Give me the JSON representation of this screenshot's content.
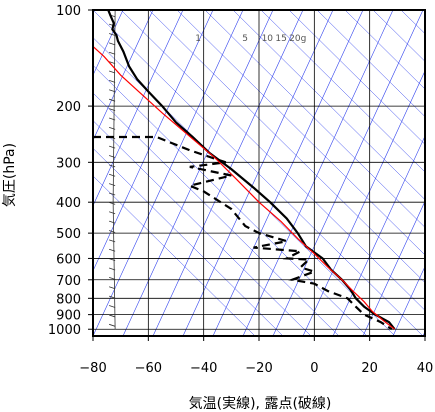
{
  "chart_data": {
    "type": "line",
    "xlabel": "気温(実線), 露点(破線)",
    "ylabel": "気圧(hPa)",
    "xlim": [
      -80,
      40
    ],
    "ylim": [
      1050,
      100
    ],
    "yscale": "log",
    "x_ticks": [
      -80,
      -60,
      -40,
      -20,
      0,
      20,
      40
    ],
    "x_tick_labels": [
      "−80",
      "−60",
      "−40",
      "−20",
      "0",
      "20",
      "40"
    ],
    "y_ticks": [
      100,
      200,
      300,
      400,
      500,
      600,
      700,
      800,
      900,
      1000
    ],
    "y_tick_labels": [
      "100",
      "200",
      "300",
      "400",
      "500",
      "600",
      "700",
      "800",
      "900",
      "1000"
    ],
    "mixing_ratio_labels": [
      {
        "text": "1",
        "x": -42
      },
      {
        "text": "5",
        "x": -25
      },
      {
        "text": "10",
        "x": -17
      },
      {
        "text": "15",
        "x": -12
      },
      {
        "text": "20g",
        "x": -6
      }
    ],
    "series": [
      {
        "style": "solid",
        "color": "#000000",
        "points": [
          [
            -74.5,
            100
          ],
          [
            -73.5,
            105
          ],
          [
            -72.5,
            110
          ],
          [
            -73,
            115
          ],
          [
            -71.5,
            120
          ],
          [
            -71,
            125
          ],
          [
            -69,
            135
          ],
          [
            -67,
            150
          ],
          [
            -64,
            165
          ],
          [
            -60,
            180
          ],
          [
            -55,
            200
          ],
          [
            -50,
            225
          ],
          [
            -44,
            250
          ],
          [
            -38,
            280
          ],
          [
            -30,
            315
          ],
          [
            -22,
            360
          ],
          [
            -16,
            400
          ],
          [
            -10,
            450
          ],
          [
            -6,
            500
          ],
          [
            -3,
            550
          ],
          [
            3,
            600
          ],
          [
            6,
            650
          ],
          [
            10,
            700
          ],
          [
            13,
            750
          ],
          [
            15,
            800
          ],
          [
            18,
            850
          ],
          [
            22,
            900
          ],
          [
            27,
            950
          ],
          [
            29,
            1000
          ]
        ]
      },
      {
        "style": "dashed",
        "color": "#000000",
        "points": [
          [
            -80,
            250
          ],
          [
            -57,
            250
          ],
          [
            -45,
            275
          ],
          [
            -32,
            300
          ],
          [
            -45,
            310
          ],
          [
            -30,
            330
          ],
          [
            -45,
            355
          ],
          [
            -40,
            370
          ],
          [
            -30,
            420
          ],
          [
            -25,
            475
          ],
          [
            -20,
            500
          ],
          [
            -10,
            530
          ],
          [
            -22,
            555
          ],
          [
            -5,
            570
          ],
          [
            -10,
            600
          ],
          [
            -2,
            605
          ],
          [
            -5,
            640
          ],
          [
            0,
            660
          ],
          [
            -8,
            700
          ],
          [
            0,
            720
          ],
          [
            5,
            760
          ],
          [
            12,
            800
          ],
          [
            15,
            850
          ],
          [
            18,
            900
          ],
          [
            24,
            950
          ],
          [
            28,
            1000
          ]
        ]
      },
      {
        "style": "solid",
        "color": "#ff0000",
        "points": [
          [
            -80,
            130
          ],
          [
            -76,
            140
          ],
          [
            -70,
            160
          ],
          [
            -62,
            185
          ],
          [
            -55,
            210
          ],
          [
            -46,
            245
          ],
          [
            -36,
            290
          ],
          [
            -28,
            340
          ],
          [
            -20,
            400
          ],
          [
            -12,
            460
          ],
          [
            -6,
            520
          ],
          [
            0,
            580
          ],
          [
            5,
            640
          ],
          [
            10,
            700
          ],
          [
            14,
            760
          ],
          [
            18,
            820
          ],
          [
            21,
            880
          ],
          [
            25,
            940
          ],
          [
            29,
            1000
          ]
        ]
      }
    ],
    "wind_barbs_x": -72,
    "grid": true
  }
}
